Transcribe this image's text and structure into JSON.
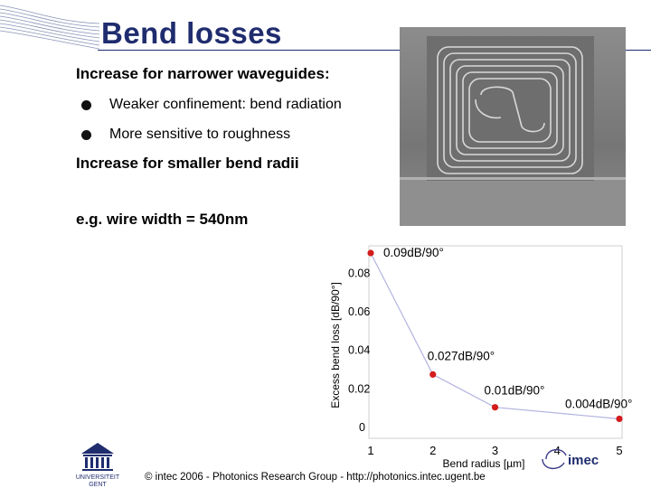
{
  "slide": {
    "title": "Bend losses",
    "point1": "Increase for narrower waveguides:",
    "bullets": [
      "Weaker confinement: bend radiation",
      "More sensitive to roughness"
    ],
    "point2": "Increase for smaller bend radii",
    "example": "e.g. wire width = 540nm",
    "footer": "© intec 2006  -  Photonics Research Group  -   http://photonics.intec.ugent.be",
    "colors": {
      "title": "#1f2c6e",
      "marker": "#d41c1c",
      "line": "#b3b3e0"
    }
  },
  "logos": {
    "ugent_line1": "UNIVERSITEIT",
    "ugent_line2": "GENT",
    "imec": "imec"
  },
  "chart_data": {
    "type": "line",
    "xlabel": "Bend radius [µm]",
    "ylabel": "Excess bend loss [dB/90°]",
    "x_ticks": [
      "1",
      "2",
      "3",
      "4",
      "5"
    ],
    "y_ticks": [
      "0",
      "0.02",
      "0.04",
      "0.06",
      "0.08"
    ],
    "xlim": [
      1,
      5
    ],
    "ylim": [
      0,
      0.09
    ],
    "x": [
      1,
      2,
      3,
      5
    ],
    "y": [
      0.09,
      0.027,
      0.01,
      0.004
    ],
    "annotations": [
      "0.09dB/90°",
      "0.027dB/90°",
      "0.01dB/90°",
      "0.004dB/90°"
    ],
    "grid": false
  }
}
